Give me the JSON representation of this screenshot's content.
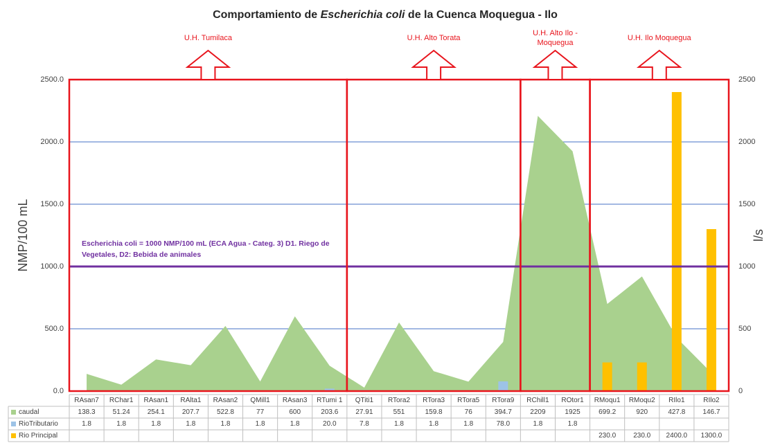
{
  "chart_data": {
    "type": "combo",
    "title_parts": [
      "Comportamiento de ",
      "Escherichia coli",
      " de la Cuenca Moquegua  - Ilo"
    ],
    "y_label": "NMP/100 mL",
    "y2_label": "l/s",
    "categories": [
      "RAsan7",
      "RChar1",
      "RAsan1",
      "RAlta1",
      "RAsan2",
      "QMill1",
      "RAsan3",
      "RTumi 1",
      "QTiti1",
      "RTora2",
      "RTora3",
      "RTora5",
      "RTora9",
      "RChill1",
      "ROtor1",
      "RMoqu1",
      "RMoqu2",
      "RIlo1",
      "RIlo2"
    ],
    "series": [
      {
        "name": "caudal",
        "type": "area",
        "axis": "y2",
        "color": "#a9d18e",
        "values": [
          138.3,
          51.24,
          254.1,
          207.7,
          522.8,
          77,
          600,
          203.6,
          27.91,
          551,
          159.8,
          76,
          394.7,
          2209,
          1925,
          699.2,
          920,
          427.8,
          146.7
        ]
      },
      {
        "name": "RioTributario",
        "type": "bar",
        "color": "#9dc3e6",
        "values": [
          1.8,
          1.8,
          1.8,
          1.8,
          1.8,
          1.8,
          1.8,
          20,
          7.8,
          1.8,
          1.8,
          1.8,
          78,
          1.8,
          1.8,
          null,
          null,
          null,
          null
        ],
        "value_labels": [
          "1.8",
          "1.8",
          "1.8",
          "1.8",
          "1.8",
          "1.8",
          "1.8",
          "20.0",
          "7.8",
          "1.8",
          "1.8",
          "1.8",
          "78.0",
          "1.8",
          "1.8",
          null,
          null,
          null,
          null
        ]
      },
      {
        "name": "Rio Principal",
        "type": "bar",
        "color": "#ffc000",
        "values": [
          null,
          null,
          null,
          null,
          null,
          null,
          null,
          null,
          null,
          null,
          null,
          null,
          null,
          null,
          null,
          230,
          230,
          2400,
          1300
        ],
        "value_labels": [
          null,
          null,
          null,
          null,
          null,
          null,
          null,
          null,
          null,
          null,
          null,
          null,
          null,
          null,
          null,
          "230.0",
          "230.0",
          "2400.0",
          "1300.0"
        ]
      }
    ],
    "ylim": [
      0,
      2500
    ],
    "yticks": [
      {
        "value": 0,
        "label": "0.0"
      },
      {
        "value": 500,
        "label": "500.0"
      },
      {
        "value": 1000,
        "label": "1000.0"
      },
      {
        "value": 1500,
        "label": "1500.0"
      },
      {
        "value": 2000,
        "label": "2000.0"
      },
      {
        "value": 2500,
        "label": "2500.0"
      }
    ],
    "y2lim": [
      0,
      2500
    ],
    "y2ticks": [
      0,
      500,
      1000,
      1500,
      2000,
      2500
    ],
    "grid": true,
    "threshold": {
      "value": 1000,
      "color": "#7030a0",
      "label_lines": [
        "Escherichia coli = 1000 NMP/100 mL (ECA Agua - Categ. 3) D1. Riego de",
        "Vegetales, D2: Bebida de animales"
      ]
    },
    "regions": [
      {
        "label_lines": [
          "U.H. Tumilaca"
        ]
      },
      {
        "label_lines": [
          "U.H. Alto Torata"
        ]
      },
      {
        "label_lines": [
          "U.H. Alto Ilo -",
          "Moquegua"
        ]
      },
      {
        "label_lines": [
          "U.H. Ilo Moquegua"
        ]
      }
    ]
  }
}
